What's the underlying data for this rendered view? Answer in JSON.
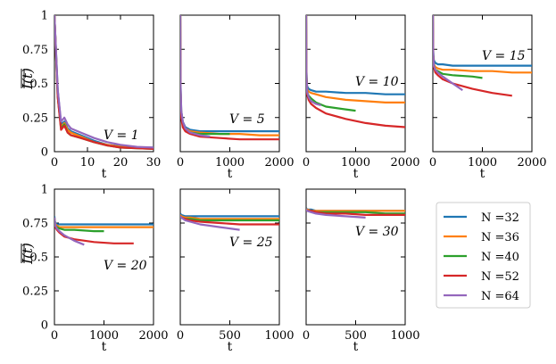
{
  "colors": {
    "N=32": "#1f77b4",
    "N=36": "#ff7f0e",
    "N=40": "#2ca02c",
    "N=52": "#d62728",
    "N=64": "#9467bd"
  },
  "legend": [
    "N =32",
    "N =36",
    "N =40",
    "N =52",
    "N =64"
  ],
  "ylabel": "I(t)",
  "chart_data": [
    {
      "type": "line",
      "title": "",
      "annotation": "V = 1",
      "xlabel": "t",
      "xlim": [
        0,
        30
      ],
      "ylim": [
        0,
        1
      ],
      "xticks": [
        0,
        10,
        20,
        30
      ],
      "yticks": [
        0,
        0.25,
        0.5,
        0.75,
        1
      ],
      "series": [
        {
          "name": "N=32",
          "x": [
            0,
            1,
            2,
            3,
            4,
            5,
            8,
            12,
            16,
            20,
            25,
            30
          ],
          "values": [
            1,
            0.45,
            0.2,
            0.22,
            0.17,
            0.15,
            0.12,
            0.08,
            0.05,
            0.04,
            0.03,
            0.03
          ]
        },
        {
          "name": "N=36",
          "x": [
            0,
            1,
            2,
            3,
            4,
            5,
            8,
            12,
            16,
            20,
            25,
            30
          ],
          "values": [
            1,
            0.42,
            0.18,
            0.21,
            0.16,
            0.14,
            0.11,
            0.07,
            0.05,
            0.035,
            0.028,
            0.025
          ]
        },
        {
          "name": "N=40",
          "x": [
            0,
            1,
            2,
            3,
            4,
            5,
            8,
            12,
            16,
            20,
            25,
            30
          ],
          "values": [
            1,
            0.4,
            0.17,
            0.2,
            0.14,
            0.12,
            0.1,
            0.07,
            0.045,
            0.03,
            0.025,
            0.02
          ]
        },
        {
          "name": "N=52",
          "x": [
            0,
            1,
            2,
            3,
            4,
            5,
            8,
            12,
            16,
            20,
            25,
            30
          ],
          "values": [
            1,
            0.4,
            0.16,
            0.19,
            0.14,
            0.12,
            0.1,
            0.07,
            0.045,
            0.03,
            0.025,
            0.02
          ]
        },
        {
          "name": "N=64",
          "x": [
            0,
            1,
            2,
            3,
            4,
            5,
            8,
            12,
            16,
            20,
            25,
            30
          ],
          "values": [
            1,
            0.45,
            0.22,
            0.25,
            0.2,
            0.17,
            0.14,
            0.1,
            0.07,
            0.05,
            0.035,
            0.03
          ]
        }
      ]
    },
    {
      "type": "line",
      "title": "",
      "annotation": "V = 5",
      "xlabel": "t",
      "xlim": [
        0,
        2000
      ],
      "ylim": [
        0,
        1
      ],
      "xticks": [
        0,
        1000,
        2000
      ],
      "yticks": [
        0,
        0.25,
        0.5,
        0.75,
        1
      ],
      "series": [
        {
          "name": "N=32",
          "x": [
            0,
            5,
            20,
            50,
            100,
            200,
            400,
            800,
            1200,
            1600,
            2000
          ],
          "values": [
            1,
            0.5,
            0.3,
            0.22,
            0.18,
            0.16,
            0.15,
            0.15,
            0.15,
            0.15,
            0.15
          ]
        },
        {
          "name": "N=36",
          "x": [
            0,
            5,
            20,
            50,
            100,
            200,
            400,
            800,
            1200,
            1600,
            2000
          ],
          "values": [
            1,
            0.48,
            0.28,
            0.2,
            0.17,
            0.15,
            0.14,
            0.13,
            0.13,
            0.12,
            0.12
          ]
        },
        {
          "name": "N=40",
          "x": [
            0,
            5,
            20,
            50,
            100,
            200,
            400,
            800,
            1000
          ],
          "values": [
            1,
            0.46,
            0.27,
            0.19,
            0.16,
            0.14,
            0.13,
            0.13,
            0.13
          ]
        },
        {
          "name": "N=52",
          "x": [
            0,
            5,
            20,
            50,
            100,
            200,
            400,
            800,
            1200,
            1600,
            2000
          ],
          "values": [
            1,
            0.45,
            0.25,
            0.18,
            0.15,
            0.13,
            0.11,
            0.1,
            0.09,
            0.09,
            0.09
          ]
        },
        {
          "name": "N=64",
          "x": [
            0,
            5,
            20,
            50,
            100,
            200,
            400,
            600
          ],
          "values": [
            1,
            0.5,
            0.3,
            0.22,
            0.17,
            0.14,
            0.12,
            0.11
          ]
        }
      ]
    },
    {
      "type": "line",
      "title": "",
      "annotation": "V = 10",
      "xlabel": "t",
      "xlim": [
        0,
        2000
      ],
      "ylim": [
        0,
        1
      ],
      "xticks": [
        0,
        1000,
        2000
      ],
      "yticks": [
        0,
        0.25,
        0.5,
        0.75,
        1
      ],
      "series": [
        {
          "name": "N=32",
          "x": [
            0,
            5,
            20,
            50,
            100,
            200,
            400,
            800,
            1200,
            1600,
            2000
          ],
          "values": [
            1,
            0.6,
            0.48,
            0.46,
            0.45,
            0.44,
            0.44,
            0.43,
            0.43,
            0.42,
            0.42
          ]
        },
        {
          "name": "N=36",
          "x": [
            0,
            5,
            20,
            50,
            100,
            200,
            400,
            800,
            1200,
            1600,
            2000
          ],
          "values": [
            1,
            0.58,
            0.46,
            0.44,
            0.43,
            0.42,
            0.4,
            0.38,
            0.37,
            0.36,
            0.36
          ]
        },
        {
          "name": "N=40",
          "x": [
            0,
            5,
            20,
            50,
            100,
            200,
            400,
            800,
            1000
          ],
          "values": [
            1,
            0.56,
            0.44,
            0.41,
            0.39,
            0.36,
            0.33,
            0.31,
            0.3
          ]
        },
        {
          "name": "N=52",
          "x": [
            0,
            5,
            20,
            50,
            100,
            200,
            400,
            800,
            1200,
            1600,
            2000
          ],
          "values": [
            1,
            0.55,
            0.42,
            0.38,
            0.35,
            0.32,
            0.28,
            0.24,
            0.21,
            0.19,
            0.18
          ]
        },
        {
          "name": "N=64",
          "x": [
            0,
            5,
            20,
            50,
            100,
            200,
            300
          ],
          "values": [
            1,
            0.56,
            0.44,
            0.4,
            0.37,
            0.35,
            0.34
          ]
        }
      ]
    },
    {
      "type": "line",
      "title": "",
      "annotation": "V = 15",
      "xlabel": "t",
      "xlim": [
        0,
        2000
      ],
      "ylim": [
        0,
        1
      ],
      "xticks": [
        0,
        1000,
        2000
      ],
      "yticks": [
        0,
        0.25,
        0.5,
        0.75,
        1
      ],
      "series": [
        {
          "name": "N=32",
          "x": [
            0,
            5,
            20,
            50,
            100,
            200,
            400,
            800,
            1200,
            1600,
            2000
          ],
          "values": [
            1,
            0.75,
            0.67,
            0.65,
            0.64,
            0.64,
            0.63,
            0.63,
            0.63,
            0.63,
            0.63
          ]
        },
        {
          "name": "N=36",
          "x": [
            0,
            5,
            20,
            50,
            100,
            200,
            400,
            800,
            1200,
            1600,
            2000
          ],
          "values": [
            1,
            0.73,
            0.64,
            0.62,
            0.61,
            0.6,
            0.6,
            0.59,
            0.59,
            0.58,
            0.58
          ]
        },
        {
          "name": "N=40",
          "x": [
            0,
            5,
            20,
            50,
            100,
            200,
            400,
            800,
            1000
          ],
          "values": [
            1,
            0.72,
            0.63,
            0.6,
            0.59,
            0.57,
            0.56,
            0.55,
            0.54
          ]
        },
        {
          "name": "N=52",
          "x": [
            0,
            5,
            20,
            50,
            100,
            200,
            400,
            800,
            1200,
            1600
          ],
          "values": [
            1,
            0.72,
            0.62,
            0.58,
            0.56,
            0.53,
            0.5,
            0.46,
            0.43,
            0.41
          ]
        },
        {
          "name": "N=64",
          "x": [
            0,
            5,
            20,
            50,
            100,
            200,
            400,
            600
          ],
          "values": [
            1,
            0.72,
            0.63,
            0.6,
            0.58,
            0.55,
            0.5,
            0.45
          ]
        }
      ]
    },
    {
      "type": "line",
      "title": "",
      "annotation": "V = 20",
      "xlabel": "t",
      "xlim": [
        0,
        2000
      ],
      "ylim": [
        0,
        1
      ],
      "xticks": [
        0,
        1000,
        2000
      ],
      "yticks": [
        0,
        0.25,
        0.5,
        0.75,
        1
      ],
      "series": [
        {
          "name": "N=32",
          "x": [
            0,
            5,
            20,
            50,
            100,
            200,
            400,
            800,
            1200,
            1600,
            2000
          ],
          "values": [
            0.8,
            0.77,
            0.75,
            0.74,
            0.74,
            0.74,
            0.74,
            0.74,
            0.74,
            0.74,
            0.74
          ]
        },
        {
          "name": "N=36",
          "x": [
            0,
            5,
            20,
            50,
            100,
            200,
            400,
            800,
            1200,
            1600,
            2000
          ],
          "values": [
            0.79,
            0.76,
            0.74,
            0.73,
            0.72,
            0.72,
            0.72,
            0.72,
            0.72,
            0.72,
            0.72
          ]
        },
        {
          "name": "N=40",
          "x": [
            0,
            5,
            20,
            50,
            100,
            200,
            400,
            800,
            1000
          ],
          "values": [
            0.78,
            0.75,
            0.73,
            0.72,
            0.71,
            0.7,
            0.7,
            0.69,
            0.69
          ]
        },
        {
          "name": "N=52",
          "x": [
            0,
            5,
            20,
            50,
            100,
            200,
            400,
            800,
            1200,
            1600
          ],
          "values": [
            0.78,
            0.75,
            0.72,
            0.7,
            0.68,
            0.65,
            0.63,
            0.61,
            0.6,
            0.6
          ]
        },
        {
          "name": "N=64",
          "x": [
            0,
            5,
            20,
            50,
            100,
            200,
            400,
            600
          ],
          "values": [
            0.79,
            0.76,
            0.73,
            0.71,
            0.69,
            0.66,
            0.62,
            0.59
          ]
        }
      ]
    },
    {
      "type": "line",
      "title": "",
      "annotation": "V = 25",
      "xlabel": "t",
      "xlim": [
        0,
        1000
      ],
      "ylim": [
        0,
        1
      ],
      "xticks": [
        0,
        500,
        1000
      ],
      "yticks": [
        0,
        0.25,
        0.5,
        0.75,
        1
      ],
      "series": [
        {
          "name": "N=32",
          "x": [
            0,
            10,
            50,
            100,
            200,
            400,
            600,
            800,
            1000
          ],
          "values": [
            0.82,
            0.81,
            0.8,
            0.8,
            0.8,
            0.8,
            0.8,
            0.8,
            0.8
          ]
        },
        {
          "name": "N=36",
          "x": [
            0,
            10,
            50,
            100,
            200,
            400,
            600,
            800,
            1000
          ],
          "values": [
            0.81,
            0.8,
            0.79,
            0.79,
            0.78,
            0.78,
            0.78,
            0.78,
            0.78
          ]
        },
        {
          "name": "N=40",
          "x": [
            0,
            10,
            50,
            100,
            200,
            400,
            600,
            800,
            1000
          ],
          "values": [
            0.8,
            0.79,
            0.78,
            0.78,
            0.77,
            0.77,
            0.77,
            0.77,
            0.77
          ]
        },
        {
          "name": "N=52",
          "x": [
            0,
            10,
            50,
            100,
            200,
            400,
            600,
            800,
            1000
          ],
          "values": [
            0.8,
            0.79,
            0.78,
            0.77,
            0.76,
            0.75,
            0.74,
            0.74,
            0.74
          ]
        },
        {
          "name": "N=64",
          "x": [
            0,
            10,
            50,
            100,
            200,
            400,
            600
          ],
          "values": [
            0.8,
            0.79,
            0.77,
            0.76,
            0.74,
            0.72,
            0.7
          ]
        }
      ]
    },
    {
      "type": "line",
      "title": "",
      "annotation": "V = 30",
      "xlabel": "t",
      "xlim": [
        0,
        1000
      ],
      "ylim": [
        0,
        1
      ],
      "xticks": [
        0,
        500,
        1000
      ],
      "yticks": [
        0,
        0.25,
        0.5,
        0.75,
        1
      ],
      "series": [
        {
          "name": "N=32",
          "x": [
            0,
            10,
            50,
            100,
            200,
            400,
            600,
            800,
            1000
          ],
          "values": [
            0.86,
            0.85,
            0.85,
            0.84,
            0.84,
            0.84,
            0.84,
            0.84,
            0.84
          ]
        },
        {
          "name": "N=36",
          "x": [
            0,
            10,
            50,
            100,
            200,
            400,
            600,
            800,
            1000
          ],
          "values": [
            0.85,
            0.85,
            0.84,
            0.84,
            0.84,
            0.84,
            0.84,
            0.84,
            0.84
          ]
        },
        {
          "name": "N=40",
          "x": [
            0,
            10,
            50,
            100,
            200,
            400,
            600,
            800,
            1000
          ],
          "values": [
            0.85,
            0.84,
            0.84,
            0.83,
            0.83,
            0.83,
            0.83,
            0.82,
            0.82
          ]
        },
        {
          "name": "N=52",
          "x": [
            0,
            10,
            50,
            100,
            200,
            400,
            600,
            800,
            1000
          ],
          "values": [
            0.85,
            0.84,
            0.84,
            0.83,
            0.82,
            0.82,
            0.81,
            0.81,
            0.81
          ]
        },
        {
          "name": "N=64",
          "x": [
            0,
            10,
            50,
            100,
            200,
            400,
            600
          ],
          "values": [
            0.85,
            0.84,
            0.83,
            0.82,
            0.81,
            0.8,
            0.79
          ]
        }
      ]
    }
  ]
}
